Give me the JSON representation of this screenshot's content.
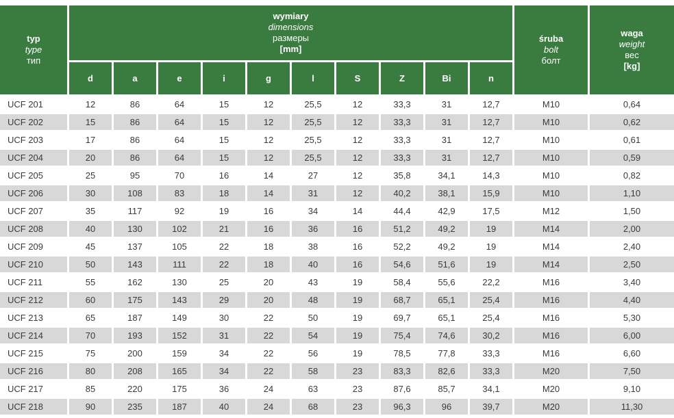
{
  "colors": {
    "header_green": "#3a7b40",
    "row_alt_gray": "#d8d8d8",
    "data_text": "#3a3a3a",
    "header_text": "#ffffff"
  },
  "table": {
    "header": {
      "type_col": {
        "line1": "typ",
        "line2": "type",
        "line3": "тип"
      },
      "dimensions_group": {
        "line1": "wymiary",
        "line2": "dimensions",
        "line3": "размеры",
        "line4": "[mm]"
      },
      "dim_columns": [
        "d",
        "a",
        "e",
        "i",
        "g",
        "l",
        "S",
        "Z",
        "Bi",
        "n"
      ],
      "bolt_col": {
        "line1": "śruba",
        "line2": "bolt",
        "line3": "болт"
      },
      "weight_col": {
        "line1": "waga",
        "line2": "weight",
        "line3": "вес",
        "line4": "[kg]"
      }
    },
    "column_keys": [
      "type",
      "d",
      "a",
      "e",
      "i",
      "g",
      "l",
      "S",
      "Z",
      "Bi",
      "n",
      "bolt",
      "weight"
    ],
    "rows": [
      [
        "UCF 201",
        "12",
        "86",
        "64",
        "15",
        "12",
        "25,5",
        "12",
        "33,3",
        "31",
        "12,7",
        "M10",
        "0,64"
      ],
      [
        "UCF 202",
        "15",
        "86",
        "64",
        "15",
        "12",
        "25,5",
        "12",
        "33,3",
        "31",
        "12,7",
        "M10",
        "0,62"
      ],
      [
        "UCF 203",
        "17",
        "86",
        "64",
        "15",
        "12",
        "25,5",
        "12",
        "33,3",
        "31",
        "12,7",
        "M10",
        "0,61"
      ],
      [
        "UCF 204",
        "20",
        "86",
        "64",
        "15",
        "12",
        "25,5",
        "12",
        "33,3",
        "31",
        "12,7",
        "M10",
        "0,59"
      ],
      [
        "UCF 205",
        "25",
        "95",
        "70",
        "16",
        "14",
        "27",
        "12",
        "35,8",
        "34,1",
        "14,3",
        "M10",
        "0,82"
      ],
      [
        "UCF 206",
        "30",
        "108",
        "83",
        "18",
        "14",
        "31",
        "12",
        "40,2",
        "38,1",
        "15,9",
        "M10",
        "1,10"
      ],
      [
        "UCF 207",
        "35",
        "117",
        "92",
        "19",
        "16",
        "34",
        "14",
        "44,4",
        "42,9",
        "17,5",
        "M12",
        "1,50"
      ],
      [
        "UCF 208",
        "40",
        "130",
        "102",
        "21",
        "16",
        "36",
        "16",
        "51,2",
        "49,2",
        "19",
        "M14",
        "2,00"
      ],
      [
        "UCF 209",
        "45",
        "137",
        "105",
        "22",
        "18",
        "38",
        "16",
        "52,2",
        "49,2",
        "19",
        "M14",
        "2,40"
      ],
      [
        "UCF 210",
        "50",
        "143",
        "111",
        "22",
        "18",
        "40",
        "16",
        "54,6",
        "51,6",
        "19",
        "M14",
        "2,50"
      ],
      [
        "UCF 211",
        "55",
        "162",
        "130",
        "25",
        "20",
        "43",
        "19",
        "58,4",
        "55,6",
        "22,2",
        "M16",
        "3,40"
      ],
      [
        "UCF 212",
        "60",
        "175",
        "143",
        "29",
        "20",
        "48",
        "19",
        "68,7",
        "65,1",
        "25,4",
        "M16",
        "4,40"
      ],
      [
        "UCF 213",
        "65",
        "187",
        "149",
        "30",
        "22",
        "50",
        "19",
        "69,7",
        "65,1",
        "25,4",
        "M16",
        "5,30"
      ],
      [
        "UCF 214",
        "70",
        "193",
        "152",
        "31",
        "22",
        "54",
        "19",
        "75,4",
        "74,6",
        "30,2",
        "M16",
        "6,00"
      ],
      [
        "UCF 215",
        "75",
        "200",
        "159",
        "34",
        "22",
        "56",
        "19",
        "78,5",
        "77,8",
        "33,3",
        "M16",
        "6,60"
      ],
      [
        "UCF 216",
        "80",
        "208",
        "165",
        "34",
        "22",
        "58",
        "23",
        "83,3",
        "82,6",
        "33,3",
        "M20",
        "7,50"
      ],
      [
        "UCF 217",
        "85",
        "220",
        "175",
        "36",
        "24",
        "63",
        "23",
        "87,6",
        "85,7",
        "34,1",
        "M20",
        "9,10"
      ],
      [
        "UCF 218",
        "90",
        "235",
        "187",
        "40",
        "24",
        "68",
        "23",
        "96,3",
        "96",
        "39,7",
        "M20",
        "11,30"
      ]
    ]
  }
}
